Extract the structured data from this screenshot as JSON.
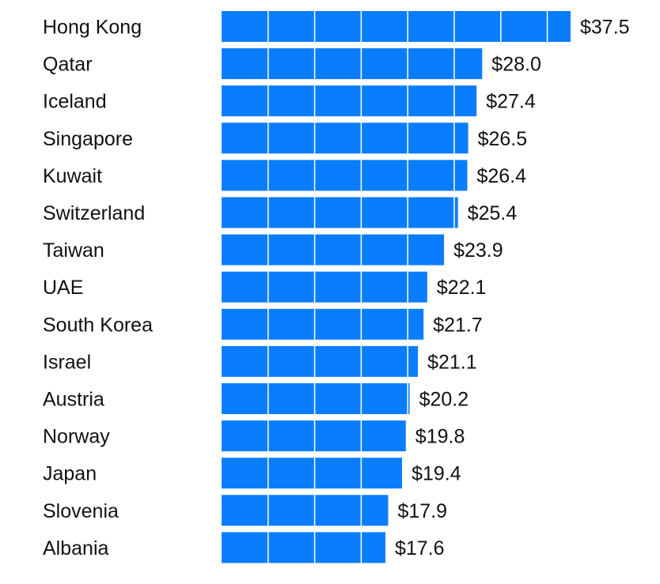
{
  "chart_data": {
    "type": "bar",
    "orientation": "horizontal",
    "title": "",
    "xlabel": "",
    "ylabel": "",
    "currency_prefix": "$",
    "categories": [
      "Hong Kong",
      "Qatar",
      "Iceland",
      "Singapore",
      "Kuwait",
      "Switzerland",
      "Taiwan",
      "UAE",
      "South Korea",
      "Israel",
      "Austria",
      "Norway",
      "Japan",
      "Slovenia",
      "Albania"
    ],
    "values": [
      37.5,
      28.0,
      27.4,
      26.5,
      26.4,
      25.4,
      23.9,
      22.1,
      21.7,
      21.1,
      20.2,
      19.8,
      19.4,
      17.9,
      17.6
    ],
    "value_labels": [
      "$37.5",
      "$28.0",
      "$27.4",
      "$26.5",
      "$26.4",
      "$25.4",
      "$23.9",
      "$22.1",
      "$21.7",
      "$21.1",
      "$20.2",
      "$19.8",
      "$19.4",
      "$17.9",
      "$17.6"
    ],
    "xlim": [
      0,
      37.5
    ],
    "gridline_step": 5,
    "grid": true,
    "bar_color": "#0a7dfd"
  }
}
